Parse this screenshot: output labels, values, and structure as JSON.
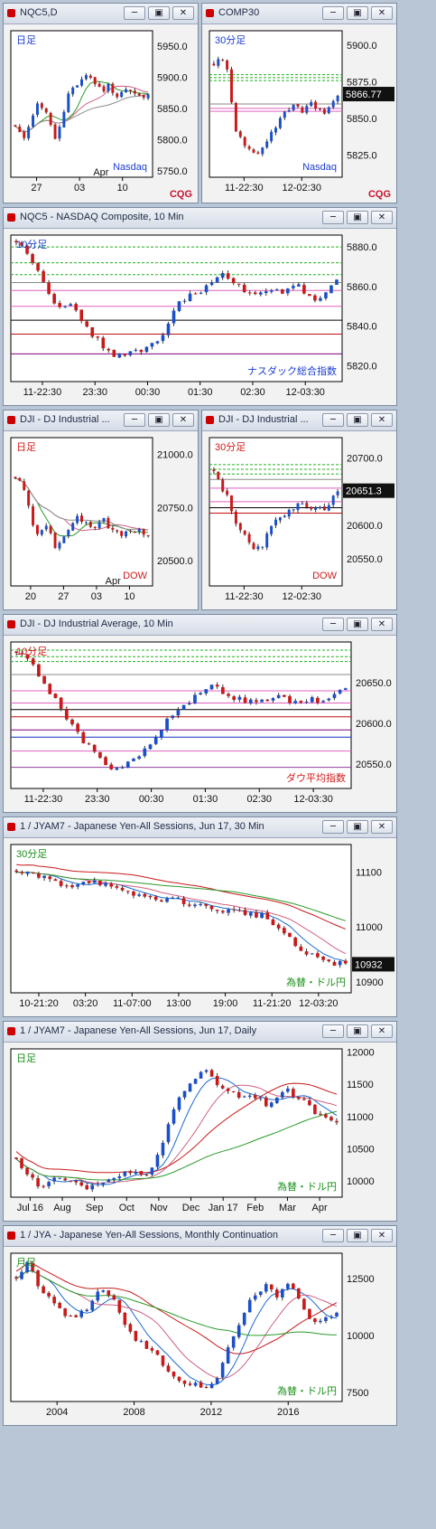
{
  "colors": {
    "up": "#1a4fc8",
    "down": "#c81a1a",
    "bg": "#ffffff",
    "frame": "#f2f2f2",
    "period_color_blue": "#1a3cd0",
    "period_color_red": "#d01a1a",
    "period_color_green": "#189018",
    "logo": "#c8102e"
  },
  "window_buttons": {
    "minimize": "─",
    "restore": "▣",
    "close": "✕"
  },
  "logo_text": "CQG",
  "windows": [
    {
      "id": "w1",
      "title": "NQC5,D",
      "period_label": "日足",
      "period_color": "blue",
      "symbol_label": "Nasdaq",
      "symbol_color": "blue",
      "price_labels": [
        "5950.0",
        "5900.0",
        "5850.0",
        "5800.0",
        "5750.0"
      ],
      "date_labels": [
        "27",
        "03",
        "10"
      ],
      "date_top_labels": [
        "Apr"
      ],
      "ylim": [
        5740,
        5975
      ],
      "trend": [
        5820,
        5800,
        5835,
        5860,
        5845,
        5800,
        5830,
        5880,
        5890,
        5905,
        5895,
        5878,
        5888,
        5870,
        5882,
        5875,
        5868,
        5870
      ],
      "hlines": [],
      "ma": [
        "#2a9a2a",
        "#d06080",
        "#8a8a8a"
      ],
      "last_value": "",
      "show_logo": true
    },
    {
      "id": "w2",
      "title": "COMP30",
      "period_label": "30分足",
      "period_color": "blue",
      "symbol_label": "Nasdaq",
      "symbol_color": "blue",
      "price_labels": [
        "5900.0",
        "5875.0",
        "5850.0",
        "5825.0"
      ],
      "date_labels": [
        "11-22:30",
        "12-02:30"
      ],
      "date_top_labels": [],
      "ylim": [
        5810,
        5910
      ],
      "trend": [
        5888,
        5890,
        5885,
        5845,
        5835,
        5830,
        5825,
        5830,
        5838,
        5845,
        5852,
        5857,
        5860,
        5855,
        5862,
        5858,
        5852,
        5860,
        5866
      ],
      "hlines": [
        5880,
        5878,
        5876,
        5860,
        5857,
        5855
      ],
      "ma": [],
      "last_value": "5866.77",
      "show_logo": true
    },
    {
      "id": "w3",
      "title": "NQC5 - NASDAQ Composite, 10 Min",
      "period_label": "10分足",
      "period_color": "blue",
      "symbol_label": "ナスダック総合指数",
      "symbol_color": "blue",
      "price_labels": [
        "5880.0",
        "5860.0",
        "5840.0",
        "5820.0"
      ],
      "date_labels": [
        "11-22:30",
        "23:30",
        "00:30",
        "01:30",
        "02:30",
        "12-03:30"
      ],
      "date_top_labels": [],
      "ylim": [
        5812,
        5886
      ],
      "trend": [
        5882,
        5878,
        5870,
        5858,
        5850,
        5852,
        5845,
        5838,
        5832,
        5826,
        5825,
        5828,
        5826,
        5830,
        5834,
        5846,
        5853,
        5857,
        5858,
        5862,
        5866,
        5862,
        5858,
        5856,
        5858,
        5860,
        5856,
        5862,
        5855,
        5852,
        5857,
        5862
      ],
      "hlines": [
        5880,
        5872,
        5866,
        5862,
        5858,
        5850,
        5843,
        5836,
        5826
      ],
      "ma": [],
      "last_value": "",
      "show_logo": false
    },
    {
      "id": "w4",
      "title": "DJI - DJ Industrial ...",
      "period_label": "日足",
      "period_color": "red",
      "symbol_label": "DOW",
      "symbol_color": "red",
      "price_labels": [
        "21000.0",
        "20750.0",
        "20500.0"
      ],
      "date_labels": [
        "20",
        "27",
        "03",
        "10"
      ],
      "date_top_labels": [
        "Apr"
      ],
      "ylim": [
        20380,
        21080
      ],
      "trend": [
        20900,
        20850,
        20700,
        20600,
        20680,
        20560,
        20600,
        20650,
        20700,
        20680,
        20640,
        20700,
        20660,
        20640,
        20620,
        20650,
        20640,
        20620
      ],
      "hlines": [],
      "ma": [
        "#2a9a2a",
        "#d06080",
        "#8a8a8a"
      ],
      "last_value": "",
      "show_logo": false
    },
    {
      "id": "w5",
      "title": "DJI - DJ Industrial ...",
      "period_label": "30分足",
      "period_color": "red",
      "symbol_label": "DOW",
      "symbol_color": "red",
      "price_labels": [
        "20700.0",
        "20650.0",
        "20600.0",
        "20550.0"
      ],
      "date_labels": [
        "11-22:30",
        "12-02:30"
      ],
      "date_top_labels": [],
      "ylim": [
        20510,
        20730
      ],
      "trend": [
        20680,
        20660,
        20640,
        20610,
        20590,
        20575,
        20560,
        20570,
        20590,
        20605,
        20615,
        20625,
        20630,
        20628,
        20620,
        20632,
        20625,
        20635,
        20651
      ],
      "hlines": [
        20690,
        20683,
        20676,
        20668,
        20655,
        20635,
        20626,
        20618
      ],
      "ma": [],
      "last_value": "20651.3",
      "show_logo": false
    },
    {
      "id": "w6",
      "title": "DJI - DJ Industrial Average, 10 Min",
      "period_label": "10分足",
      "period_color": "red",
      "symbol_label": "ダウ平均指数",
      "symbol_color": "red",
      "price_labels": [
        "20650.0",
        "20600.0",
        "20550.0"
      ],
      "date_labels": [
        "11-22:30",
        "23:30",
        "00:30",
        "01:30",
        "02:30",
        "12-03:30"
      ],
      "date_top_labels": [],
      "ylim": [
        20520,
        20700
      ],
      "trend": [
        20690,
        20680,
        20660,
        20640,
        20620,
        20600,
        20580,
        20565,
        20550,
        20545,
        20548,
        20560,
        20570,
        20590,
        20610,
        20620,
        20630,
        20640,
        20645,
        20638,
        20630,
        20628,
        20625,
        20630,
        20632,
        20628,
        20622,
        20630,
        20626,
        20635,
        20645
      ],
      "hlines": [
        20690,
        20682,
        20676,
        20660,
        20640,
        20625,
        20617,
        20608,
        20592,
        20583,
        20566,
        20546
      ],
      "ma": [],
      "last_value": "",
      "show_logo": false
    },
    {
      "id": "w7",
      "title": "1 / JYAM7 - Japanese Yen-All Sessions, Jun 17, 30 Min",
      "period_label": "30分足",
      "period_color": "green",
      "symbol_label": "為替・ドル円",
      "symbol_color": "green",
      "price_labels": [
        "11100",
        "11000",
        "10900"
      ],
      "date_labels": [
        "10-21:20",
        "03:20",
        "11-07:00",
        "13:00",
        "19:00",
        "11-21:20",
        "12-03:20"
      ],
      "date_top_labels": [],
      "ylim": [
        10880,
        11150
      ],
      "trend": [
        11100,
        11095,
        11090,
        11080,
        11075,
        11085,
        11082,
        11070,
        11060,
        11058,
        11050,
        11052,
        11048,
        11040,
        11035,
        11030,
        11028,
        11025,
        11020,
        11000,
        10975,
        10950,
        10945,
        10935,
        10932
      ],
      "hlines": [],
      "ma": [
        "#1a6ad0",
        "#d06080",
        "#c81a1a",
        "#2a9a2a"
      ],
      "last_value": "10932",
      "show_logo": false
    },
    {
      "id": "w8",
      "title": "1 / JYAM7 - Japanese Yen-All Sessions, Jun 17, Daily",
      "period_label": "日足",
      "period_color": "green",
      "symbol_label": "為替・ドル円",
      "symbol_color": "green",
      "price_labels": [
        "12000",
        "11500",
        "11000",
        "10500",
        "10000"
      ],
      "date_labels": [
        "Jul 16",
        "Aug",
        "Sep",
        "Oct",
        "Nov",
        "Dec",
        "Jan 17",
        "Feb",
        "Mar",
        "Apr"
      ],
      "date_top_labels": [],
      "ylim": [
        9750,
        12050
      ],
      "trend": [
        10300,
        10100,
        9900,
        10050,
        10000,
        9950,
        9900,
        9980,
        10050,
        10100,
        10200,
        10050,
        10400,
        11000,
        11400,
        11600,
        11700,
        11500,
        11400,
        11300,
        11350,
        11200,
        11300,
        11400,
        11250,
        11100,
        11000,
        10950
      ],
      "hlines": [],
      "ma": [
        "#1a6ad0",
        "#d06080",
        "#c81a1a",
        "#2a9a2a"
      ],
      "last_value": "",
      "show_logo": false
    },
    {
      "id": "w9",
      "title": "1 / JYA - Japanese Yen-All Sessions, Monthly Continuation",
      "period_label": "月足",
      "period_color": "green",
      "symbol_label": "為替・ドル円",
      "symbol_color": "green",
      "price_labels": [
        "12500",
        "10000",
        "7500"
      ],
      "date_labels": [
        "2004",
        "2008",
        "2012",
        "2016"
      ],
      "date_top_labels": [],
      "ylim": [
        7100,
        13600
      ],
      "trend": [
        12500,
        13200,
        12000,
        11500,
        11000,
        10800,
        11200,
        12000,
        11800,
        10500,
        9800,
        9500,
        9000,
        8400,
        8000,
        7900,
        7800,
        8200,
        9600,
        10800,
        11800,
        12200,
        11700,
        12300,
        11500,
        10500,
        10700,
        11000
      ],
      "hlines": [],
      "ma": [
        "#1a6ad0",
        "#d06080",
        "#c81a1a",
        "#2a9a2a"
      ],
      "last_value": "",
      "show_logo": false
    }
  ]
}
